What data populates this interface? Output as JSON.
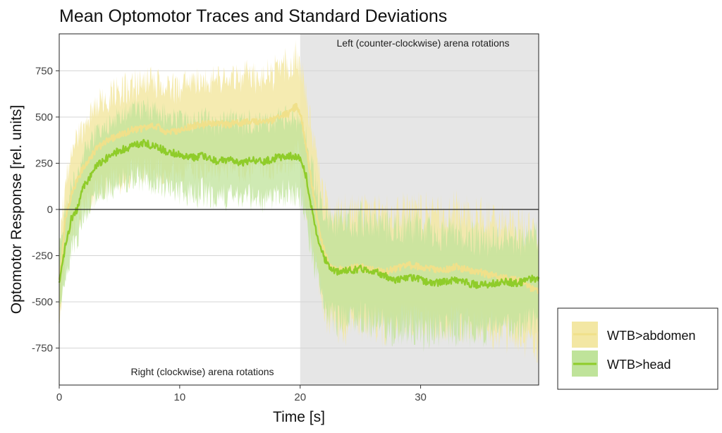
{
  "chart_data": {
    "type": "line",
    "title": "Mean Optomotor Traces and Standard Deviations",
    "xlabel": "Time [s]",
    "ylabel": "Optomotor Response [rel. units]",
    "xlim": [
      0,
      39.8
    ],
    "ylim": [
      -950,
      950
    ],
    "x_ticks": [
      0,
      10,
      20,
      30
    ],
    "y_ticks": [
      -750,
      -500,
      -250,
      0,
      250,
      500,
      750
    ],
    "grid": true,
    "reference_line_y": 0,
    "shaded_region": {
      "x_start": 20,
      "x_end": 39.8,
      "color": "#e6e6e6"
    },
    "annotations": [
      {
        "text": "Left (counter-clockwise) arena rotations",
        "x": 30,
        "y": 900
      },
      {
        "text": "Right (clockwise) arena rotations",
        "x": 10,
        "y": -880
      }
    ],
    "legend_position": "right",
    "series": [
      {
        "name": "WTB>abdomen",
        "color": "#f0e08a",
        "band_color": "#f3e7a3",
        "mean": [
          [
            0,
            -390
          ],
          [
            0.5,
            -60
          ],
          [
            1,
            80
          ],
          [
            1.5,
            160
          ],
          [
            2,
            230
          ],
          [
            3,
            320
          ],
          [
            4,
            370
          ],
          [
            5,
            400
          ],
          [
            6,
            430
          ],
          [
            7,
            440
          ],
          [
            8,
            450
          ],
          [
            9,
            420
          ],
          [
            10,
            430
          ],
          [
            11,
            450
          ],
          [
            12,
            460
          ],
          [
            13,
            470
          ],
          [
            14,
            460
          ],
          [
            15,
            470
          ],
          [
            16,
            480
          ],
          [
            17,
            470
          ],
          [
            18,
            490
          ],
          [
            19,
            520
          ],
          [
            19.7,
            560
          ],
          [
            20,
            530
          ],
          [
            20.5,
            350
          ],
          [
            21,
            120
          ],
          [
            21.5,
            -80
          ],
          [
            22,
            -230
          ],
          [
            22.5,
            -310
          ],
          [
            23,
            -330
          ],
          [
            24,
            -320
          ],
          [
            25,
            -310
          ],
          [
            26,
            -330
          ],
          [
            27,
            -340
          ],
          [
            28,
            -320
          ],
          [
            29,
            -300
          ],
          [
            30,
            -310
          ],
          [
            31,
            -320
          ],
          [
            32,
            -330
          ],
          [
            33,
            -310
          ],
          [
            34,
            -330
          ],
          [
            35,
            -340
          ],
          [
            36,
            -360
          ],
          [
            37,
            -370
          ],
          [
            38,
            -380
          ],
          [
            39,
            -420
          ],
          [
            39.8,
            -450
          ]
        ],
        "sd": [
          [
            0,
            200
          ],
          [
            1,
            200
          ],
          [
            2,
            230
          ],
          [
            5,
            240
          ],
          [
            10,
            230
          ],
          [
            15,
            240
          ],
          [
            20,
            260
          ],
          [
            20.5,
            280
          ],
          [
            22,
            300
          ],
          [
            25,
            300
          ],
          [
            30,
            300
          ],
          [
            35,
            300
          ],
          [
            39.8,
            300
          ]
        ]
      },
      {
        "name": "WTB>head",
        "color": "#8fcc2a",
        "band_color": "#bfe39a",
        "mean": [
          [
            0,
            -400
          ],
          [
            0.5,
            -200
          ],
          [
            1,
            -50
          ],
          [
            1.5,
            0
          ],
          [
            2,
            120
          ],
          [
            2.5,
            170
          ],
          [
            3,
            230
          ],
          [
            4,
            280
          ],
          [
            5,
            320
          ],
          [
            6,
            340
          ],
          [
            7,
            360
          ],
          [
            8,
            340
          ],
          [
            9,
            310
          ],
          [
            10,
            300
          ],
          [
            11,
            280
          ],
          [
            12,
            290
          ],
          [
            13,
            260
          ],
          [
            14,
            270
          ],
          [
            15,
            250
          ],
          [
            16,
            270
          ],
          [
            17,
            260
          ],
          [
            18,
            280
          ],
          [
            19,
            290
          ],
          [
            20,
            280
          ],
          [
            20.5,
            180
          ],
          [
            21,
            -20
          ],
          [
            21.5,
            -160
          ],
          [
            22,
            -260
          ],
          [
            22.5,
            -320
          ],
          [
            23,
            -340
          ],
          [
            24,
            -330
          ],
          [
            25,
            -320
          ],
          [
            26,
            -330
          ],
          [
            27,
            -360
          ],
          [
            28,
            -380
          ],
          [
            29,
            -370
          ],
          [
            30,
            -380
          ],
          [
            31,
            -400
          ],
          [
            32,
            -390
          ],
          [
            33,
            -380
          ],
          [
            34,
            -400
          ],
          [
            35,
            -410
          ],
          [
            36,
            -400
          ],
          [
            37,
            -390
          ],
          [
            38,
            -400
          ],
          [
            39,
            -380
          ],
          [
            39.8,
            -370
          ]
        ],
        "sd": [
          [
            0,
            180
          ],
          [
            2,
            170
          ],
          [
            5,
            180
          ],
          [
            10,
            200
          ],
          [
            15,
            200
          ],
          [
            20,
            210
          ],
          [
            22,
            250
          ],
          [
            25,
            270
          ],
          [
            30,
            280
          ],
          [
            35,
            250
          ],
          [
            39.8,
            230
          ]
        ]
      }
    ]
  }
}
